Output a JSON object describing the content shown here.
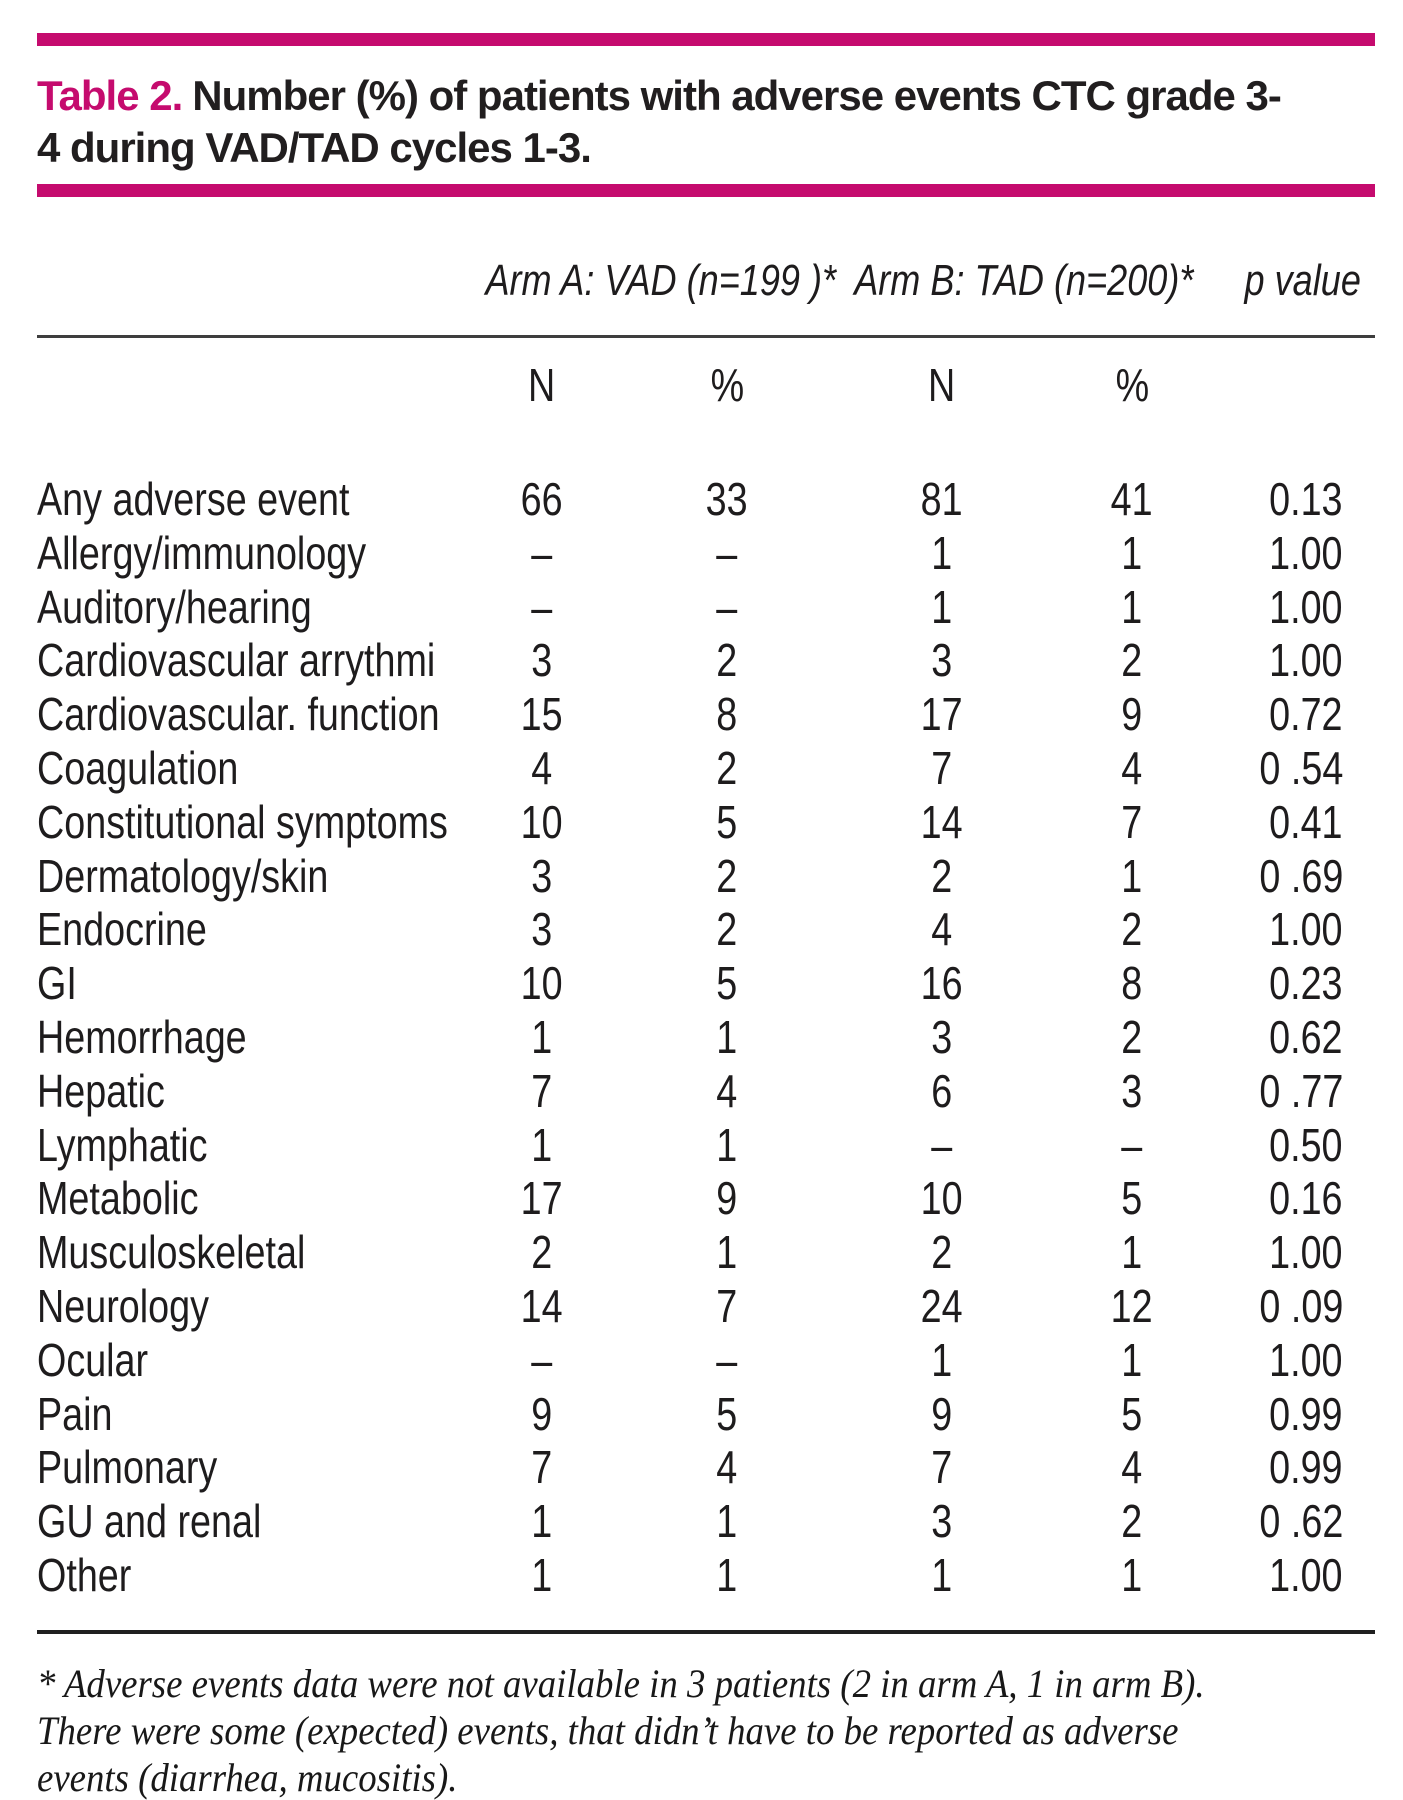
{
  "colors": {
    "accent_pink": "#c50b6e",
    "text_black": "#1e1c1d"
  },
  "title": {
    "label": "Table 2.",
    "line1": "Number (%) of patients with adverse events CTC grade 3-",
    "line2": "4 during VAD/TAD cycles 1-3."
  },
  "table": {
    "group_headers": {
      "arm_a": "Arm A: VAD (n=199 )*",
      "arm_b": "Arm B: TAD (n=200)*",
      "p": "p value"
    },
    "subheaders": [
      "N",
      "%",
      "N",
      "%"
    ],
    "rows": [
      {
        "label": "Any adverse event",
        "a_n": "66",
        "a_pct": "33",
        "b_n": "81",
        "b_pct": "41",
        "p": "0.13"
      },
      {
        "label": "Allergy/immunology",
        "a_n": "–",
        "a_pct": "–",
        "b_n": "1",
        "b_pct": "1",
        "p": "1.00"
      },
      {
        "label": "Auditory/hearing",
        "a_n": "–",
        "a_pct": "–",
        "b_n": "1",
        "b_pct": "1",
        "p": "1.00"
      },
      {
        "label": "Cardiovascular arrythmi",
        "a_n": "3",
        "a_pct": "2",
        "b_n": "3",
        "b_pct": "2",
        "p": "1.00"
      },
      {
        "label": "Cardiovascular. function",
        "a_n": "15",
        "a_pct": "8",
        "b_n": "17",
        "b_pct": "9",
        "p": "0.72"
      },
      {
        "label": "Coagulation",
        "a_n": "4",
        "a_pct": "2",
        "b_n": "7",
        "b_pct": "4",
        "p": "0 .54"
      },
      {
        "label": "Constitutional symptoms",
        "a_n": "10",
        "a_pct": "5",
        "b_n": "14",
        "b_pct": "7",
        "p": "0.41"
      },
      {
        "label": "Dermatology/skin",
        "a_n": "3",
        "a_pct": "2",
        "b_n": "2",
        "b_pct": "1",
        "p": "0 .69"
      },
      {
        "label": "Endocrine",
        "a_n": "3",
        "a_pct": "2",
        "b_n": "4",
        "b_pct": "2",
        "p": "1.00"
      },
      {
        "label": "GI",
        "a_n": "10",
        "a_pct": "5",
        "b_n": "16",
        "b_pct": "8",
        "p": "0.23"
      },
      {
        "label": "Hemorrhage",
        "a_n": "1",
        "a_pct": "1",
        "b_n": "3",
        "b_pct": "2",
        "p": "0.62"
      },
      {
        "label": "Hepatic",
        "a_n": "7",
        "a_pct": "4",
        "b_n": "6",
        "b_pct": "3",
        "p": "0 .77"
      },
      {
        "label": "Lymphatic",
        "a_n": "1",
        "a_pct": "1",
        "b_n": "–",
        "b_pct": "–",
        "p": "0.50"
      },
      {
        "label": "Metabolic",
        "a_n": "17",
        "a_pct": "9",
        "b_n": "10",
        "b_pct": "5",
        "p": "0.16"
      },
      {
        "label": "Musculoskeletal",
        "a_n": "2",
        "a_pct": "1",
        "b_n": "2",
        "b_pct": "1",
        "p": "1.00"
      },
      {
        "label": "Neurology",
        "a_n": "14",
        "a_pct": "7",
        "b_n": "24",
        "b_pct": "12",
        "p": "0 .09"
      },
      {
        "label": "Ocular",
        "a_n": "–",
        "a_pct": "–",
        "b_n": "1",
        "b_pct": "1",
        "p": "1.00"
      },
      {
        "label": "Pain",
        "a_n": "9",
        "a_pct": "5",
        "b_n": "9",
        "b_pct": "5",
        "p": "0.99"
      },
      {
        "label": "Pulmonary",
        "a_n": "7",
        "a_pct": "4",
        "b_n": "7",
        "b_pct": "4",
        "p": "0.99"
      },
      {
        "label": "GU and renal",
        "a_n": "1",
        "a_pct": "1",
        "b_n": "3",
        "b_pct": "2",
        "p": "0 .62"
      },
      {
        "label": "Other",
        "a_n": "1",
        "a_pct": "1",
        "b_n": "1",
        "b_pct": "1",
        "p": "1.00"
      }
    ]
  },
  "footnote": {
    "lines": [
      "* Adverse events data were not available in 3 patients (2 in arm A, 1 in arm B).",
      "There were some (expected) events, that didn’t have to be reported as adverse",
      "events (diarrhea, mucositis)."
    ]
  }
}
